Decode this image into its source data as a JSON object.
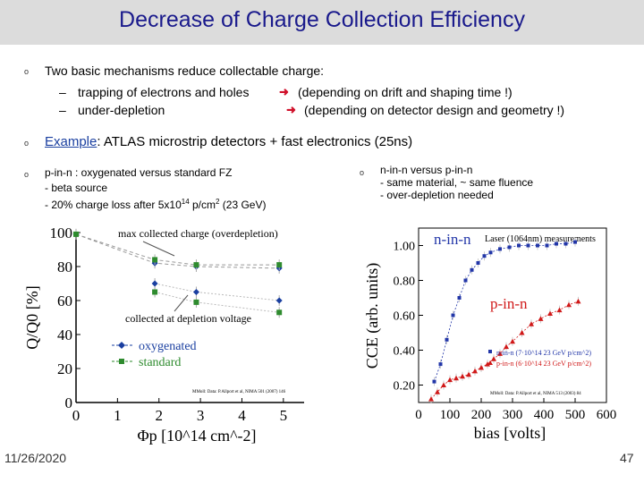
{
  "slide": {
    "title": "Decrease of Charge Collection Efficiency",
    "bullets": {
      "b1": "Two basic mechanisms reduce collectable charge:",
      "b1_sub1_a": "trapping of electrons and holes",
      "b1_sub1_b": "(depending on drift and shaping time !)",
      "b1_sub2_a": "under-depletion",
      "b1_sub2_b": "(depending on detector design and geometry !)",
      "b2_example": "Example",
      "b2_rest": ": ATLAS microstrip detectors + fast electronics (25ns)",
      "left_text": [
        "p-in-n : oxygenated versus standard FZ",
        "- beta source",
        "- 20% charge loss after 5x10",
        "14",
        " p/cm",
        "2",
        " (23 GeV)"
      ],
      "right_text": [
        "n-in-n versus p-in-n",
        "- same material, ~ same fluence",
        "- over-depletion needed"
      ]
    },
    "symbols": {
      "dash": "–",
      "bullet": "o",
      "arrow": "➜"
    },
    "footer": {
      "date": "11/26/2020",
      "page": "47"
    }
  },
  "chart_data": [
    {
      "type": "line",
      "title": "",
      "xlabel": "Φp [10^14 cm^-2]",
      "ylabel": "Q/Q0 [%]",
      "xlim": [
        0,
        5.5
      ],
      "ylim": [
        0,
        100
      ],
      "xticks": [
        "0",
        "1",
        "2",
        "3",
        "4",
        "5"
      ],
      "yticks": [
        "0",
        "20",
        "40",
        "60",
        "80",
        "100"
      ],
      "series": [
        {
          "name": "oxygenated (max)",
          "x": [
            0,
            1.9,
            2.9,
            4.9
          ],
          "y": [
            99,
            82,
            80,
            79
          ],
          "color": "#1a3fa0"
        },
        {
          "name": "standard (max)",
          "x": [
            0,
            1.9,
            2.9,
            4.9
          ],
          "y": [
            99,
            84,
            81,
            81
          ],
          "color": "#2e8b2e"
        },
        {
          "name": "oxygenated (depl)",
          "x": [
            1.9,
            2.9,
            4.9
          ],
          "y": [
            70,
            65,
            60
          ],
          "color": "#1a3fa0"
        },
        {
          "name": "standard (depl)",
          "x": [
            1.9,
            2.9,
            4.9
          ],
          "y": [
            65,
            59,
            53
          ],
          "color": "#2e8b2e"
        }
      ],
      "annotations": [
        "max collected charge (overdepletion)",
        "collected at depletion voltage",
        "MMoll: Data: P.Allport et al, NIMA 501 (2007) 146"
      ],
      "legend": [
        "oxygenated",
        "standard"
      ]
    },
    {
      "type": "line",
      "title": "Laser (1064nm) measurements",
      "xlabel": "bias [volts]",
      "ylabel": "CCE (arb. units)",
      "xlim": [
        0,
        600
      ],
      "ylim": [
        0.1,
        1.1
      ],
      "xticks": [
        "0",
        "100",
        "200",
        "300",
        "400",
        "500",
        "600"
      ],
      "yticks": [
        "0.20",
        "0.40",
        "0.60",
        "0.80",
        "1.00"
      ],
      "series": [
        {
          "name": "n-in-n",
          "x": [
            50,
            70,
            90,
            110,
            130,
            150,
            170,
            190,
            210,
            230,
            260,
            290,
            320,
            350,
            380,
            410,
            440,
            470,
            500
          ],
          "y": [
            0.22,
            0.32,
            0.46,
            0.6,
            0.7,
            0.8,
            0.86,
            0.9,
            0.94,
            0.96,
            0.98,
            0.99,
            1.0,
            1.0,
            1.0,
            1.0,
            1.01,
            1.01,
            1.02
          ],
          "color": "#2236a8"
        },
        {
          "name": "p-in-n",
          "x": [
            40,
            60,
            80,
            100,
            120,
            140,
            160,
            180,
            200,
            220,
            240,
            260,
            280,
            300,
            330,
            360,
            390,
            420,
            450,
            480,
            510
          ],
          "y": [
            0.12,
            0.16,
            0.2,
            0.23,
            0.24,
            0.25,
            0.26,
            0.28,
            0.3,
            0.32,
            0.35,
            0.38,
            0.42,
            0.45,
            0.5,
            0.55,
            0.58,
            0.61,
            0.63,
            0.66,
            0.68
          ],
          "color": "#d01818"
        }
      ],
      "annotations": [
        "n-in-n",
        "p-in-n",
        "MMoll: Data: P.Allport et al, NIMA 513 (2003) 84"
      ],
      "legend": [
        "n-in-n (7·10^14 23 GeV p/cm^2)",
        "p-in-n (6·10^14 23 GeV p/cm^2)"
      ]
    }
  ]
}
